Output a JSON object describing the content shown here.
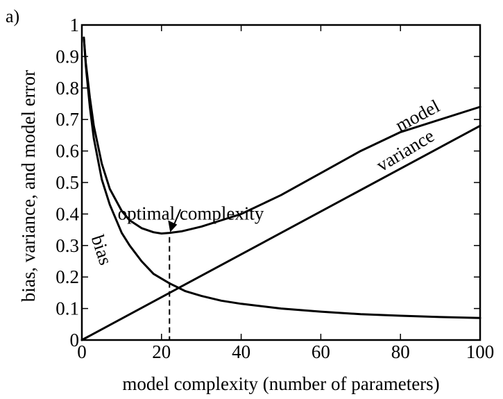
{
  "chart_data": {
    "type": "line",
    "panel_label": "a)",
    "xlabel": "model complexity (number of parameters)",
    "ylabel": "bias, variance, and model error",
    "xlim": [
      0,
      100
    ],
    "ylim": [
      0,
      1
    ],
    "x_ticks": [
      "0",
      "20",
      "40",
      "60",
      "80",
      "100"
    ],
    "y_ticks": [
      "0",
      "0.1",
      "0.2",
      "0.3",
      "0.4",
      "0.5",
      "0.6",
      "0.7",
      "0.8",
      "0.9",
      "1"
    ],
    "grid": false,
    "series": [
      {
        "name": "bias",
        "x": [
          0.5,
          1,
          2,
          3,
          5,
          7,
          10,
          12,
          15,
          18,
          22,
          26,
          30,
          35,
          40,
          50,
          60,
          70,
          80,
          90,
          100
        ],
        "y": [
          0.96,
          0.87,
          0.74,
          0.64,
          0.51,
          0.43,
          0.34,
          0.3,
          0.25,
          0.21,
          0.18,
          0.155,
          0.14,
          0.125,
          0.115,
          0.1,
          0.09,
          0.082,
          0.077,
          0.073,
          0.07
        ]
      },
      {
        "name": "variance",
        "x": [
          0,
          100
        ],
        "y": [
          0,
          0.68
        ]
      },
      {
        "name": "model",
        "x": [
          0.5,
          1,
          2,
          3,
          5,
          7,
          10,
          12,
          15,
          18,
          20,
          22,
          25,
          30,
          35,
          40,
          50,
          60,
          70,
          80,
          90,
          100
        ],
        "y": [
          0.96,
          0.88,
          0.77,
          0.68,
          0.56,
          0.48,
          0.41,
          0.38,
          0.355,
          0.342,
          0.338,
          0.34,
          0.345,
          0.36,
          0.38,
          0.4,
          0.46,
          0.53,
          0.6,
          0.66,
          0.7,
          0.74
        ]
      }
    ],
    "annotation": {
      "text": "optimal complexity",
      "x": 22,
      "y": 0.34
    }
  }
}
